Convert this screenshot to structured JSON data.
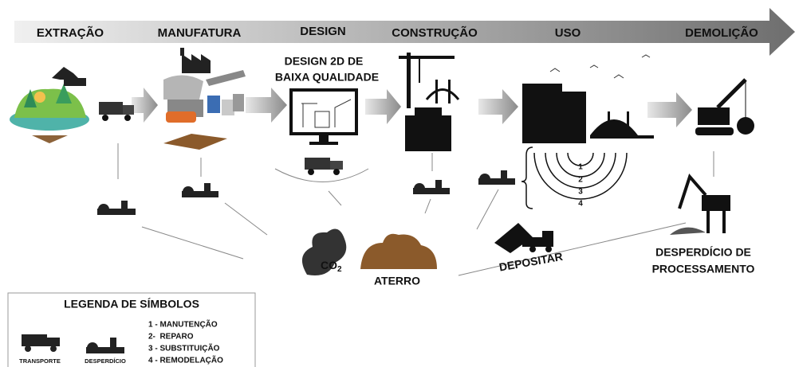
{
  "stages": [
    "EXTRAÇÃO",
    "MANUFATURA",
    "DESIGN",
    "CONSTRUÇÃO",
    "USO",
    "DEMOLIÇÃO"
  ],
  "design_note": [
    "DESIGN 2D DE",
    "BAIXA QUALIDADE"
  ],
  "cycle_numbers": [
    "1",
    "2",
    "3",
    "4"
  ],
  "emission": {
    "label": "CO",
    "subscript": "2"
  },
  "landfill": "ATERRO",
  "deposit": "DEPOSITAR",
  "processing_waste": [
    "DESPERDÍCIO DE",
    "PROCESSAMENTO"
  ],
  "legend": {
    "title": "LEGENDA DE SÍMBOLOS",
    "symbols": [
      "TRANSPORTE",
      "DESPERDÍCIO"
    ],
    "items": [
      "1 - MANUTENÇÃO",
      "2-  REPARO",
      "3 - SUBSTITUIÇÃO",
      "4 - REMODELAÇÃO"
    ]
  }
}
